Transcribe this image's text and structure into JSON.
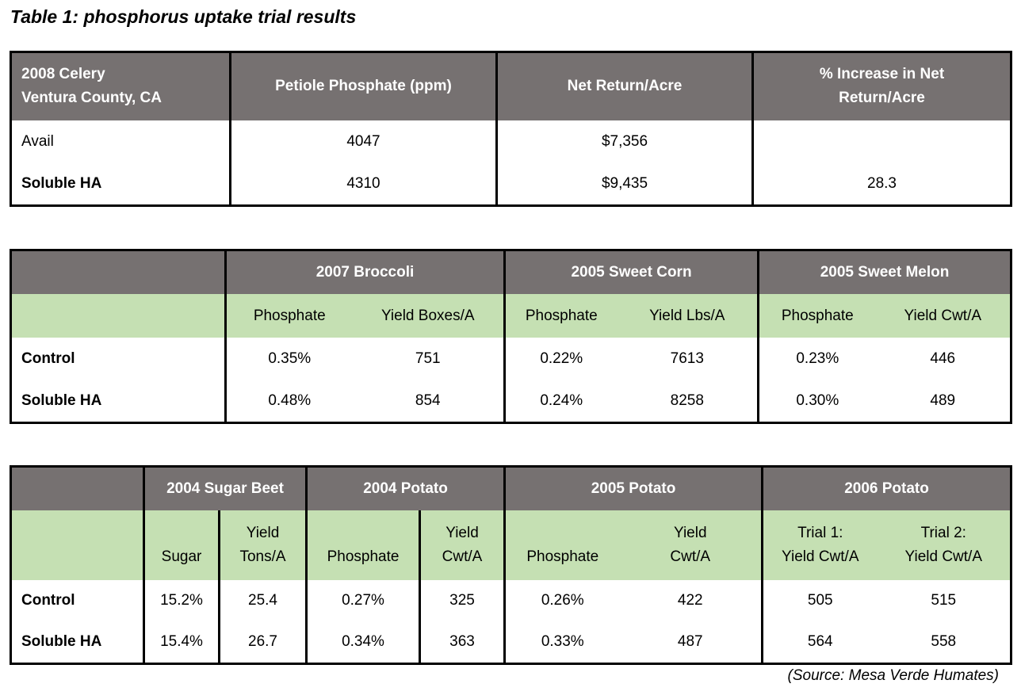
{
  "title": "Table 1: phosphorus uptake trial results",
  "table1": {
    "header": {
      "crop_line1": "2008 Celery",
      "crop_line2": "Ventura County, CA",
      "col1": "Petiole Phosphate (ppm)",
      "col2": "Net Return/Acre",
      "col3_line1": "% Increase in Net",
      "col3_line2": "Return/Acre"
    },
    "rows": [
      {
        "label": "Avail",
        "phosphate": "4047",
        "net_return": "$7,356",
        "increase": ""
      },
      {
        "label": "Soluble HA",
        "phosphate": "4310",
        "net_return": "$9,435",
        "increase": "28.3"
      }
    ]
  },
  "table2": {
    "groups": [
      "2007 Broccoli",
      "2005 Sweet Corn",
      "2005 Sweet Melon"
    ],
    "subheaders": [
      "Phosphate",
      "Yield Boxes/A",
      "Phosphate",
      "Yield Lbs/A",
      "Phosphate",
      "Yield Cwt/A"
    ],
    "rows": [
      {
        "label": "Control",
        "values": [
          "0.35%",
          "751",
          "0.22%",
          "7613",
          "0.23%",
          "446"
        ]
      },
      {
        "label": "Soluble HA",
        "values": [
          "0.48%",
          "854",
          "0.24%",
          "8258",
          "0.30%",
          "489"
        ]
      }
    ]
  },
  "table3": {
    "groups": [
      "2004 Sugar Beet",
      "2004 Potato",
      "2005 Potato",
      "2006 Potato"
    ],
    "subheaders": [
      {
        "line1": "",
        "line2": "Sugar"
      },
      {
        "line1": "Yield",
        "line2": "Tons/A"
      },
      {
        "line1": "",
        "line2": "Phosphate"
      },
      {
        "line1": "Yield",
        "line2": "Cwt/A"
      },
      {
        "line1": "",
        "line2": "Phosphate"
      },
      {
        "line1": "Yield",
        "line2": "Cwt/A"
      },
      {
        "line1": "Trial 1:",
        "line2": "Yield Cwt/A"
      },
      {
        "line1": "Trial 2:",
        "line2": "Yield Cwt/A"
      }
    ],
    "rows": [
      {
        "label": "Control",
        "values": [
          "15.2%",
          "25.4",
          "0.27%",
          "325",
          "0.26%",
          "422",
          "505",
          "515"
        ]
      },
      {
        "label": "Soluble HA",
        "values": [
          "15.4%",
          "26.7",
          "0.34%",
          "363",
          "0.33%",
          "487",
          "564",
          "558"
        ]
      }
    ]
  },
  "source": "(Source: Mesa Verde Humates)"
}
